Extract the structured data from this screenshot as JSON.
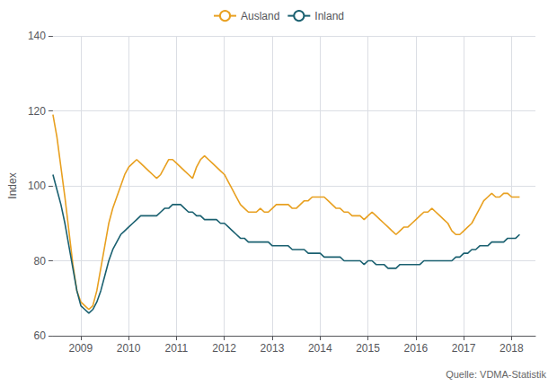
{
  "chart_data": {
    "type": "line",
    "ylabel": "Index",
    "annotation": "Quelle: VDMA-Statistik",
    "x": [
      2008.42,
      2008.5033,
      2008.5867,
      2008.67,
      2008.7533,
      2008.8367,
      2008.92,
      2009.0033,
      2009.0867,
      2009.17,
      2009.2533,
      2009.3367,
      2009.42,
      2009.5033,
      2009.5867,
      2009.67,
      2009.7533,
      2009.8367,
      2009.92,
      2010.0033,
      2010.0867,
      2010.17,
      2010.2533,
      2010.3367,
      2010.42,
      2010.5033,
      2010.5867,
      2010.67,
      2010.7533,
      2010.8367,
      2010.92,
      2011.0033,
      2011.0867,
      2011.17,
      2011.2533,
      2011.3367,
      2011.42,
      2011.5033,
      2011.5867,
      2011.67,
      2011.7533,
      2011.8367,
      2011.92,
      2012.0033,
      2012.0867,
      2012.17,
      2012.2533,
      2012.3367,
      2012.42,
      2012.5033,
      2012.5867,
      2012.67,
      2012.7533,
      2012.8367,
      2012.92,
      2013.0033,
      2013.0867,
      2013.17,
      2013.2533,
      2013.3367,
      2013.42,
      2013.5033,
      2013.5867,
      2013.67,
      2013.7533,
      2013.8367,
      2013.92,
      2014.0033,
      2014.0867,
      2014.17,
      2014.2533,
      2014.3367,
      2014.42,
      2014.5033,
      2014.5867,
      2014.67,
      2014.7533,
      2014.8367,
      2014.92,
      2015.0033,
      2015.0867,
      2015.17,
      2015.2533,
      2015.3367,
      2015.42,
      2015.5033,
      2015.5867,
      2015.67,
      2015.7533,
      2015.8367,
      2015.92,
      2016.0033,
      2016.0867,
      2016.17,
      2016.2533,
      2016.3367,
      2016.42,
      2016.5033,
      2016.5867,
      2016.67,
      2016.7533,
      2016.8367,
      2016.92,
      2017.0033,
      2017.0867,
      2017.17,
      2017.2533,
      2017.3367,
      2017.42,
      2017.5033,
      2017.5867,
      2017.67,
      2017.7533,
      2017.8367,
      2017.92,
      2018.0033,
      2018.0867,
      2018.17
    ],
    "series": [
      {
        "name": "Ausland",
        "color": "#E8A020",
        "values": [
          119,
          113,
          105,
          97,
          88,
          79,
          72,
          69,
          68,
          67,
          68,
          72,
          78,
          84,
          90,
          94,
          97,
          100,
          103,
          105,
          106,
          107,
          106,
          105,
          104,
          103,
          102,
          103,
          105,
          107,
          107,
          106,
          105,
          104,
          103,
          102,
          105,
          107,
          108,
          107,
          106,
          105,
          104,
          103,
          101,
          99,
          97,
          95,
          94,
          93,
          93,
          93,
          94,
          93,
          93,
          94,
          95,
          95,
          95,
          95,
          94,
          94,
          95,
          96,
          96,
          97,
          97,
          97,
          97,
          96,
          95,
          94,
          94,
          93,
          93,
          92,
          92,
          92,
          91,
          92,
          93,
          92,
          91,
          90,
          89,
          88,
          87,
          88,
          89,
          89,
          90,
          91,
          92,
          93,
          93,
          94,
          93,
          92,
          91,
          90,
          88,
          87,
          87,
          88,
          89,
          90,
          92,
          94,
          96,
          97,
          98,
          97,
          97,
          98,
          98,
          97,
          97,
          97
        ]
      },
      {
        "name": "Inland",
        "color": "#1A6070",
        "values": [
          103,
          99,
          95,
          90,
          84,
          78,
          72,
          68,
          67,
          66,
          67,
          69,
          72,
          76,
          80,
          83,
          85,
          87,
          88,
          89,
          90,
          91,
          92,
          92,
          92,
          92,
          92,
          93,
          94,
          94,
          95,
          95,
          95,
          94,
          93,
          93,
          92,
          92,
          91,
          91,
          91,
          91,
          90,
          90,
          89,
          88,
          87,
          86,
          86,
          85,
          85,
          85,
          85,
          85,
          85,
          84,
          84,
          84,
          84,
          84,
          83,
          83,
          83,
          83,
          82,
          82,
          82,
          82,
          81,
          81,
          81,
          81,
          81,
          80,
          80,
          80,
          80,
          80,
          79,
          80,
          80,
          79,
          79,
          79,
          78,
          78,
          78,
          79,
          79,
          79,
          79,
          79,
          79,
          80,
          80,
          80,
          80,
          80,
          80,
          80,
          80,
          81,
          81,
          82,
          82,
          83,
          83,
          84,
          84,
          84,
          85,
          85,
          85,
          85,
          86,
          86,
          86,
          87
        ]
      }
    ],
    "xlim": [
      2008.42,
      2018.5
    ],
    "xticks": [
      2009,
      2010,
      2011,
      2012,
      2013,
      2014,
      2015,
      2016,
      2017,
      2018
    ],
    "ylim": [
      60,
      140
    ],
    "yticks": [
      60,
      80,
      100,
      120,
      140
    ],
    "grid": true,
    "legend": "top"
  }
}
